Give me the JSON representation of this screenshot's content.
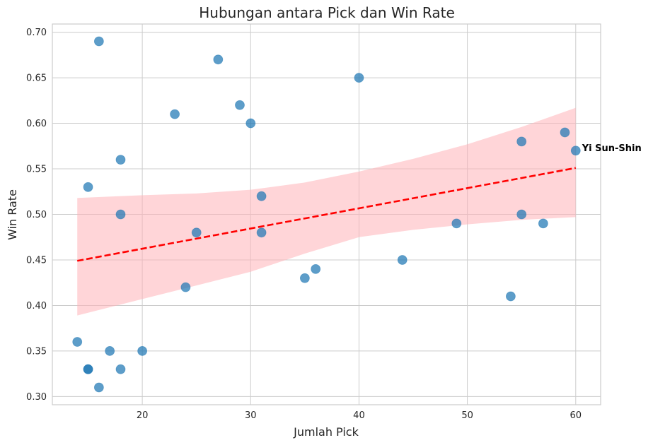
{
  "chart_data": {
    "type": "scatter",
    "title": "Hubungan antara Pick dan Win Rate",
    "xlabel": "Jumlah Pick",
    "ylabel": "Win Rate",
    "xlim": [
      11.7,
      62.3
    ],
    "ylim": [
      0.291,
      0.709
    ],
    "x_ticks": [
      20,
      30,
      40,
      50,
      60
    ],
    "y_ticks": [
      0.3,
      0.35,
      0.4,
      0.45,
      0.5,
      0.55,
      0.6,
      0.65,
      0.7
    ],
    "grid": true,
    "point_color": "#1f77b4",
    "points": [
      {
        "x": 16,
        "y": 0.69
      },
      {
        "x": 27,
        "y": 0.67
      },
      {
        "x": 40,
        "y": 0.65
      },
      {
        "x": 29,
        "y": 0.62
      },
      {
        "x": 23,
        "y": 0.61
      },
      {
        "x": 30,
        "y": 0.6
      },
      {
        "x": 59,
        "y": 0.59
      },
      {
        "x": 55,
        "y": 0.58
      },
      {
        "x": 60,
        "y": 0.57
      },
      {
        "x": 18,
        "y": 0.56
      },
      {
        "x": 15,
        "y": 0.53
      },
      {
        "x": 31,
        "y": 0.52
      },
      {
        "x": 18,
        "y": 0.5
      },
      {
        "x": 55,
        "y": 0.5
      },
      {
        "x": 49,
        "y": 0.49
      },
      {
        "x": 57,
        "y": 0.49
      },
      {
        "x": 25,
        "y": 0.48
      },
      {
        "x": 31,
        "y": 0.48
      },
      {
        "x": 44,
        "y": 0.45
      },
      {
        "x": 36,
        "y": 0.44
      },
      {
        "x": 35,
        "y": 0.43
      },
      {
        "x": 24,
        "y": 0.42
      },
      {
        "x": 54,
        "y": 0.41
      },
      {
        "x": 14,
        "y": 0.36
      },
      {
        "x": 17,
        "y": 0.35
      },
      {
        "x": 20,
        "y": 0.35
      },
      {
        "x": 15,
        "y": 0.33
      },
      {
        "x": 15,
        "y": 0.33
      },
      {
        "x": 18,
        "y": 0.33
      },
      {
        "x": 16,
        "y": 0.31
      }
    ],
    "regression": {
      "x": [
        14,
        60
      ],
      "y": [
        0.449,
        0.551
      ],
      "color": "#ff0000",
      "style": "dashed"
    },
    "confidence_band": {
      "color": "#ffb3b8",
      "x": [
        14,
        20,
        25,
        30,
        35,
        40,
        45,
        50,
        55,
        60
      ],
      "upper": [
        0.518,
        0.521,
        0.523,
        0.527,
        0.535,
        0.547,
        0.561,
        0.577,
        0.596,
        0.617
      ],
      "lower": [
        0.389,
        0.407,
        0.422,
        0.437,
        0.457,
        0.475,
        0.483,
        0.489,
        0.494,
        0.497
      ]
    },
    "annotations": [
      {
        "text": "Yi Sun-Shin",
        "x": 60,
        "y": 0.57
      }
    ]
  }
}
